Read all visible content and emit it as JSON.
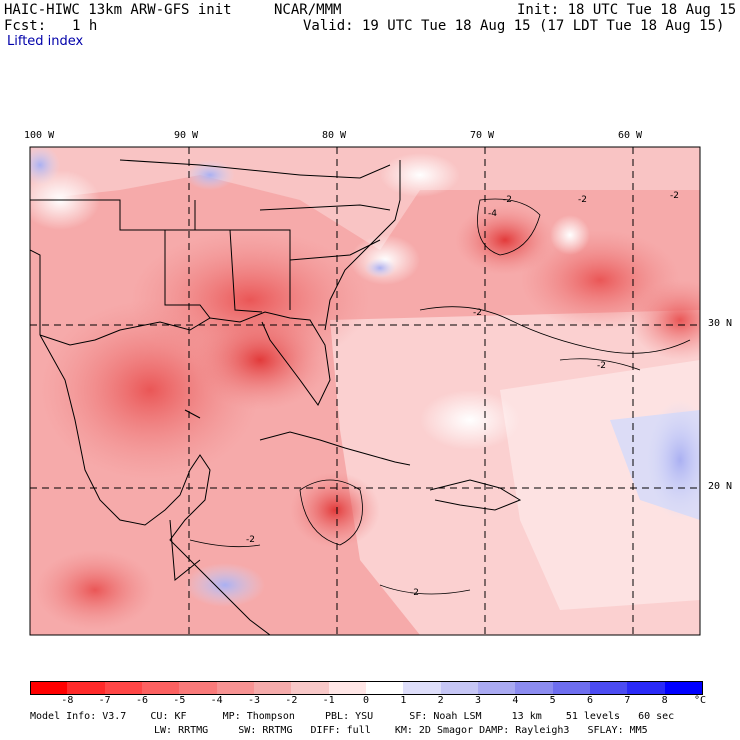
{
  "header": {
    "model": "HAIC-HIWC 13km ARW-GFS init",
    "org": "NCAR/MMM",
    "init": "Init: 18 UTC Tue 18 Aug 15",
    "fcst_label": "Fcst:",
    "fcst_value": "1 h",
    "valid": "Valid: 19 UTC Tue 18 Aug 15 (17 LDT Tue 18 Aug 15)",
    "field": "Lifted index"
  },
  "longitude_labels": [
    "100 W",
    "90 W",
    "80 W",
    "70 W",
    "60 W"
  ],
  "latitude_labels": [
    "30 N",
    "20 N"
  ],
  "contour_labels": [
    "-2",
    "-4",
    "-2",
    "-2",
    "-2",
    "-2",
    "-2",
    "-2"
  ],
  "colorbar": {
    "unit": "°C",
    "ticks": [
      "-8",
      "-7",
      "-6",
      "-5",
      "-4",
      "-3",
      "-2",
      "-1",
      "0",
      "1",
      "2",
      "3",
      "4",
      "5",
      "6",
      "7",
      "8"
    ],
    "colors": [
      "#ff0000",
      "#ff2a2a",
      "#ff4646",
      "#fc6161",
      "#f97a7a",
      "#f79393",
      "#f5abab",
      "#f8c8c8",
      "#ffe6e6",
      "#ffffff",
      "#dedefa",
      "#c6c6f5",
      "#aaaaf2",
      "#8c8cf0",
      "#6e6eef",
      "#4c4cf2",
      "#2a2af7",
      "#0000ff"
    ]
  },
  "footer": {
    "line1": "Model Info: V3.7    CU: KF      MP: Thompson     PBL: YSU      SF: Noah LSM     13 km    51 levels   60 sec",
    "line2": "LW: RRTMG     SW: RRTMG   DIFF: full    KM: 2D Smagor DAMP: Rayleigh3   SFLAY: MM5"
  }
}
